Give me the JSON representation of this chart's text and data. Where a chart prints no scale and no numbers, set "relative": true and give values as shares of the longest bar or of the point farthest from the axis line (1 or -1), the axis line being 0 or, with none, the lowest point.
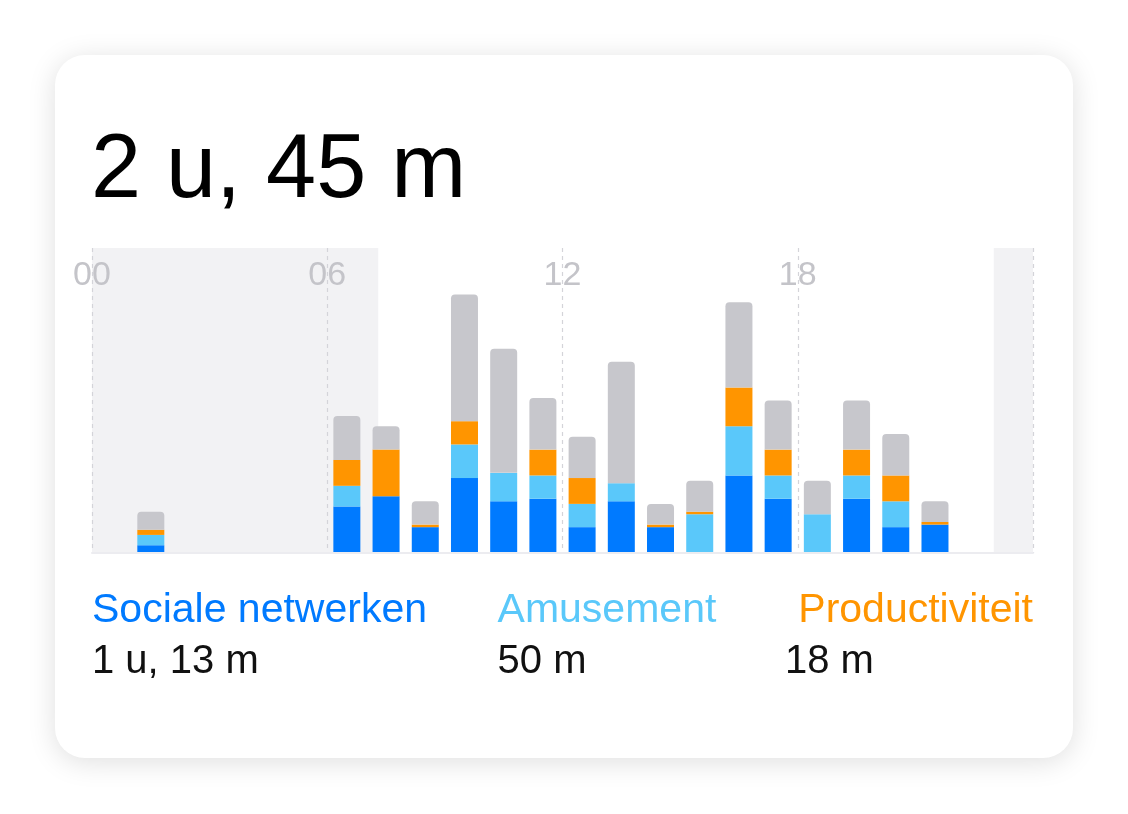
{
  "chart_data": {
    "type": "bar",
    "title": "2 u, 45 m",
    "relative": true,
    "stacked": true,
    "x": [
      1.5,
      6.5,
      7.5,
      8.5,
      9.5,
      10.5,
      11.5,
      12.5,
      13.5,
      14.5,
      15.5,
      16.5,
      17.5,
      18.5,
      19.5,
      20.5,
      21.5
    ],
    "xlim": [
      0,
      24
    ],
    "xticks": [
      {
        "value": 0,
        "label": "00"
      },
      {
        "value": 6,
        "label": "06"
      },
      {
        "value": 12,
        "label": "12"
      },
      {
        "value": 18,
        "label": "18"
      },
      {
        "value": 24,
        "label": null
      }
    ],
    "series": [
      {
        "name": "Sociale netwerken",
        "color": "#007aff",
        "values": [
          0.03,
          0.18,
          0.22,
          0.1,
          0.29,
          0.2,
          0.21,
          0.1,
          0.2,
          0.1,
          0,
          0.3,
          0.21,
          0,
          0.21,
          0.1,
          0.11
        ]
      },
      {
        "name": "Amusement",
        "color": "#5ac8fa",
        "values": [
          0.04,
          0.08,
          0,
          0,
          0.13,
          0.11,
          0.09,
          0.09,
          0.07,
          0,
          0.15,
          0.19,
          0.09,
          0.15,
          0.09,
          0.1,
          0
        ]
      },
      {
        "name": "Productiviteit",
        "color": "#ff9500",
        "values": [
          0.02,
          0.1,
          0.18,
          0.01,
          0.09,
          0,
          0.1,
          0.1,
          0,
          0.01,
          0.01,
          0.15,
          0.1,
          0,
          0.1,
          0.1,
          0.01
        ]
      },
      {
        "color": "#c7c7cc",
        "values": [
          0.07,
          0.17,
          0.09,
          0.09,
          0.49,
          0.48,
          0.2,
          0.16,
          0.47,
          0.08,
          0.12,
          0.33,
          0.19,
          0.13,
          0.19,
          0.16,
          0.08
        ]
      }
    ],
    "bands": [
      {
        "axis": "x",
        "from": 0,
        "to": 7.3,
        "color": "#f2f2f4"
      },
      {
        "axis": "x",
        "from": 23,
        "to": 24,
        "color": "#f2f2f4"
      }
    ],
    "annotations": [
      "1 u, 13 m",
      "50 m",
      "18 m"
    ],
    "grid": "x",
    "legend": "bottom"
  }
}
